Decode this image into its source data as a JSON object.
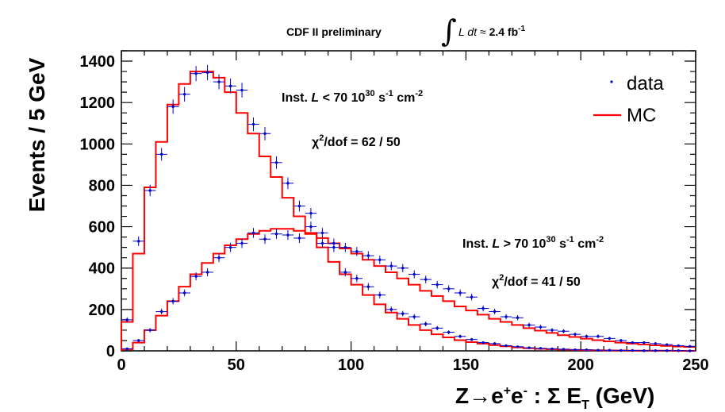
{
  "header": {
    "preliminary": "CDF II preliminary",
    "lumi_prefix": "L dt",
    "lumi_approx": "≈",
    "lumi_value": "2.4 fb",
    "lumi_exp": "-1"
  },
  "annotations": {
    "low": {
      "prefix": "Inst. ",
      "L": "L",
      "rel": " < 70 10",
      "exp30": "30",
      "s": " s",
      "exp_s": "-1",
      "cm": " cm",
      "exp_cm": "-2",
      "chi_label": "χ",
      "chi_exp": "2",
      "chi_value": "/dof = 62 / 50"
    },
    "high": {
      "prefix": "Inst. ",
      "L": "L",
      "rel": " > 70 10",
      "exp30": "30",
      "s": " s",
      "exp_s": "-1",
      "cm": " cm",
      "exp_cm": "-2",
      "chi_label": "χ",
      "chi_exp": "2",
      "chi_value": "/dof = 41 / 50"
    }
  },
  "axis": {
    "ylabel": "Events / 5 GeV",
    "xlabel_main": "Z→e",
    "xlabel_plus": "+",
    "xlabel_e": "e",
    "xlabel_minus": "-",
    "xlabel_sum": " : Σ E",
    "xlabel_sub": "T",
    "xlabel_unit": " (GeV)"
  },
  "legend": {
    "data": "data",
    "mc": "MC",
    "position": "top-right"
  },
  "chart_data": {
    "type": "line",
    "xlim": [
      0,
      250
    ],
    "ylim": [
      0,
      1450
    ],
    "xticks": [
      0,
      50,
      100,
      150,
      200,
      250
    ],
    "yticks": [
      0,
      200,
      400,
      600,
      800,
      1000,
      1200,
      1400
    ],
    "bin_width": 5,
    "grid": false,
    "colors": {
      "data": "#0000cc",
      "mc": "#ff0000"
    },
    "series": [
      {
        "name": "MC",
        "group": "Inst. L < 70",
        "style": "histogram",
        "values": [
          140,
          470,
          790,
          1010,
          1190,
          1290,
          1350,
          1350,
          1320,
          1250,
          1150,
          1050,
          940,
          840,
          740,
          650,
          570,
          500,
          430,
          370,
          320,
          270,
          225,
          185,
          155,
          125,
          100,
          80,
          65,
          52,
          42,
          35,
          28,
          22,
          17,
          13,
          10,
          8,
          6,
          5,
          4,
          3,
          2,
          2,
          1,
          1,
          1,
          1,
          0,
          0
        ]
      },
      {
        "name": "data",
        "group": "Inst. L < 70",
        "style": "points",
        "values": [
          150,
          530,
          775,
          950,
          1180,
          1240,
          1340,
          1345,
          1300,
          1280,
          1260,
          1095,
          1050,
          910,
          810,
          700,
          665,
          520,
          500,
          380,
          350,
          310,
          270,
          200,
          180,
          165,
          130,
          110,
          90,
          70,
          55,
          40,
          35,
          25,
          20,
          15,
          12,
          10,
          8,
          5,
          5,
          3,
          3,
          2,
          2,
          1,
          1,
          1,
          1,
          0
        ]
      },
      {
        "name": "MC",
        "group": "Inst. L > 70",
        "style": "histogram",
        "values": [
          8,
          40,
          100,
          170,
          240,
          310,
          370,
          425,
          470,
          510,
          540,
          565,
          580,
          590,
          590,
          580,
          565,
          545,
          520,
          495,
          470,
          440,
          410,
          380,
          350,
          320,
          290,
          265,
          240,
          215,
          195,
          175,
          155,
          140,
          125,
          110,
          98,
          87,
          76,
          67,
          59,
          52,
          46,
          40,
          35,
          31,
          27,
          24,
          21,
          19
        ]
      },
      {
        "name": "data",
        "group": "Inst. L > 70",
        "style": "points",
        "values": [
          10,
          50,
          100,
          190,
          240,
          280,
          360,
          380,
          450,
          500,
          520,
          570,
          540,
          565,
          560,
          545,
          600,
          570,
          520,
          500,
          480,
          460,
          440,
          410,
          400,
          370,
          345,
          320,
          300,
          280,
          260,
          205,
          190,
          165,
          160,
          125,
          115,
          100,
          95,
          80,
          70,
          70,
          60,
          50,
          40,
          40,
          35,
          30,
          25,
          22
        ]
      }
    ]
  }
}
